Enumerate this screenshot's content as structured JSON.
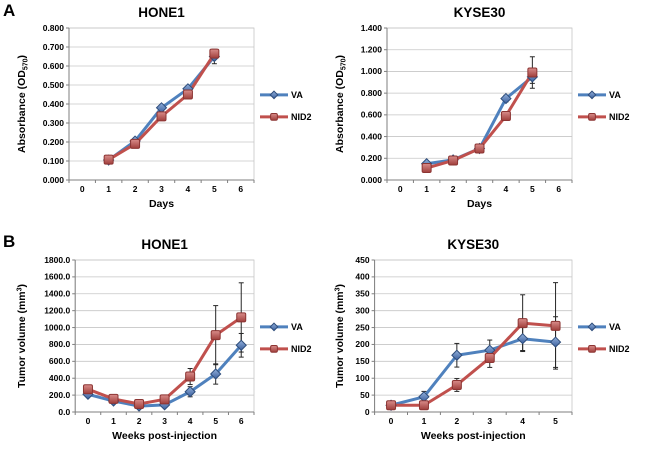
{
  "panels": {
    "a": "A",
    "b": "B"
  },
  "colors": {
    "background": "#FFFFFF",
    "gridline": "#C6C6C6",
    "axis": "#7F7F7F",
    "plot_border": "#C6C6C6",
    "error_bar": "#262626",
    "text": "#000000",
    "va_line": "#4F81BD",
    "nid2_line": "#C0504D"
  },
  "legend": {
    "va_label": "VA",
    "nid2_label": "NID2"
  },
  "chart_data": [
    {
      "id": "a_hone1",
      "panel": "A",
      "type": "line",
      "title": "HONE1",
      "xlabel": "Days",
      "ylabel": "Absorbance (OD570)",
      "ylabel_parts": [
        {
          "t": "Absorbance (OD"
        },
        {
          "t": "570",
          "sub": true
        },
        {
          "t": ")"
        }
      ],
      "categories": [
        "0",
        "1",
        "2",
        "3",
        "4",
        "5",
        "6"
      ],
      "ymin": 0,
      "ymax": 0.8,
      "ytick_labels": [
        "0.000",
        "0.100",
        "0.200",
        "0.300",
        "0.400",
        "0.500",
        "0.600",
        "0.700",
        "0.800"
      ],
      "grid": "horizontal",
      "legend_position": "right",
      "series": [
        {
          "name": "VA",
          "marker": "diamond",
          "line_color": "#4F81BD",
          "marker_border": "#2E4D7B",
          "fill_light": "#93B1DC",
          "fill_dark": "#3A5E9C",
          "values": [
            null,
            0.105,
            0.205,
            0.38,
            0.48,
            0.65,
            null
          ],
          "errors": [
            null,
            0.008,
            0.01,
            0.015,
            0.012,
            0.038,
            null
          ]
        },
        {
          "name": "NID2",
          "marker": "square",
          "line_color": "#C0504D",
          "marker_border": "#8C3533",
          "fill_light": "#D98D8B",
          "fill_dark": "#A03E3B",
          "values": [
            null,
            0.107,
            0.19,
            0.335,
            0.45,
            0.665,
            null
          ],
          "errors": [
            null,
            0.008,
            0.01,
            0.012,
            0.012,
            0.02,
            null
          ]
        }
      ]
    },
    {
      "id": "a_kyse30",
      "panel": "A",
      "type": "line",
      "title": "KYSE30",
      "xlabel": "Days",
      "ylabel": "Absorbance (OD570)",
      "ylabel_parts": [
        {
          "t": "Absorbance (OD"
        },
        {
          "t": "570",
          "sub": true
        },
        {
          "t": ")"
        }
      ],
      "categories": [
        "0",
        "1",
        "2",
        "3",
        "4",
        "5",
        "6"
      ],
      "ymin": 0,
      "ymax": 1.4,
      "ytick_labels": [
        "0.000",
        "0.200",
        "0.400",
        "0.600",
        "0.800",
        "1.000",
        "1.200",
        "1.400"
      ],
      "grid": "horizontal",
      "legend_position": "right",
      "series": [
        {
          "name": "VA",
          "marker": "diamond",
          "line_color": "#4F81BD",
          "marker_border": "#2E4D7B",
          "fill_light": "#93B1DC",
          "fill_dark": "#3A5E9C",
          "values": [
            null,
            0.15,
            0.185,
            0.29,
            0.75,
            0.95,
            null
          ],
          "errors": [
            null,
            0.02,
            0.015,
            0.02,
            0.03,
            0.06,
            null
          ]
        },
        {
          "name": "NID2",
          "marker": "square",
          "line_color": "#C0504D",
          "marker_border": "#8C3533",
          "fill_light": "#D98D8B",
          "fill_dark": "#A03E3B",
          "values": [
            null,
            0.11,
            0.18,
            0.29,
            0.59,
            0.99,
            null
          ],
          "errors": [
            null,
            0.02,
            0.015,
            0.02,
            0.04,
            0.145,
            null
          ]
        }
      ]
    },
    {
      "id": "b_hone1",
      "panel": "B",
      "type": "line",
      "title": "HONE1",
      "xlabel": "Weeks post-injection",
      "ylabel": "Tumor volume (mm3)",
      "ylabel_parts": [
        {
          "t": "Tumor volume (mm"
        },
        {
          "t": "3",
          "sup": true
        },
        {
          "t": ")"
        }
      ],
      "categories": [
        "0",
        "1",
        "2",
        "3",
        "4",
        "5",
        "6"
      ],
      "ymin": 0,
      "ymax": 1800,
      "ytick_labels": [
        "0.0",
        "200.0",
        "400.0",
        "600.0",
        "800.0",
        "1000.0",
        "1200.0",
        "1400.0",
        "1600.0",
        "1800.0"
      ],
      "grid": "horizontal",
      "legend_position": "right",
      "series": [
        {
          "name": "VA",
          "marker": "diamond",
          "line_color": "#4F81BD",
          "marker_border": "#2E4D7B",
          "fill_light": "#93B1DC",
          "fill_dark": "#3A5E9C",
          "values": [
            210,
            130,
            70,
            85,
            240,
            450,
            790
          ],
          "errors": [
            25,
            30,
            25,
            30,
            60,
            120,
            140
          ]
        },
        {
          "name": "NID2",
          "marker": "square",
          "line_color": "#C0504D",
          "marker_border": "#8C3533",
          "fill_light": "#D98D8B",
          "fill_dark": "#A03E3B",
          "values": [
            270,
            155,
            95,
            150,
            420,
            910,
            1120
          ],
          "errors": [
            35,
            35,
            30,
            35,
            95,
            350,
            410
          ]
        }
      ]
    },
    {
      "id": "b_kyse30",
      "panel": "B",
      "type": "line",
      "title": "KYSE30",
      "xlabel": "Weeks post-injection",
      "ylabel": "Tumor volume (mm3)",
      "ylabel_parts": [
        {
          "t": "Tumor volume (mm"
        },
        {
          "t": "3",
          "sup": true
        },
        {
          "t": ")"
        }
      ],
      "categories": [
        "0",
        "1",
        "2",
        "3",
        "4",
        "5"
      ],
      "ymin": 0,
      "ymax": 450,
      "ytick_labels": [
        "0",
        "50",
        "100",
        "150",
        "200",
        "250",
        "300",
        "350",
        "400",
        "450"
      ],
      "grid": "horizontal",
      "legend_position": "right",
      "series": [
        {
          "name": "VA",
          "marker": "diamond",
          "line_color": "#4F81BD",
          "marker_border": "#2E4D7B",
          "fill_light": "#93B1DC",
          "fill_dark": "#3A5E9C",
          "values": [
            20,
            45,
            168,
            183,
            217,
            207
          ],
          "errors": [
            5,
            16,
            35,
            30,
            35,
            75
          ]
        },
        {
          "name": "NID2",
          "marker": "square",
          "line_color": "#C0504D",
          "marker_border": "#8C3533",
          "fill_light": "#D98D8B",
          "fill_dark": "#A03E3B",
          "values": [
            20,
            20,
            80,
            160,
            263,
            255
          ],
          "errors": [
            5,
            8,
            19,
            28,
            84,
            128
          ]
        }
      ]
    }
  ]
}
